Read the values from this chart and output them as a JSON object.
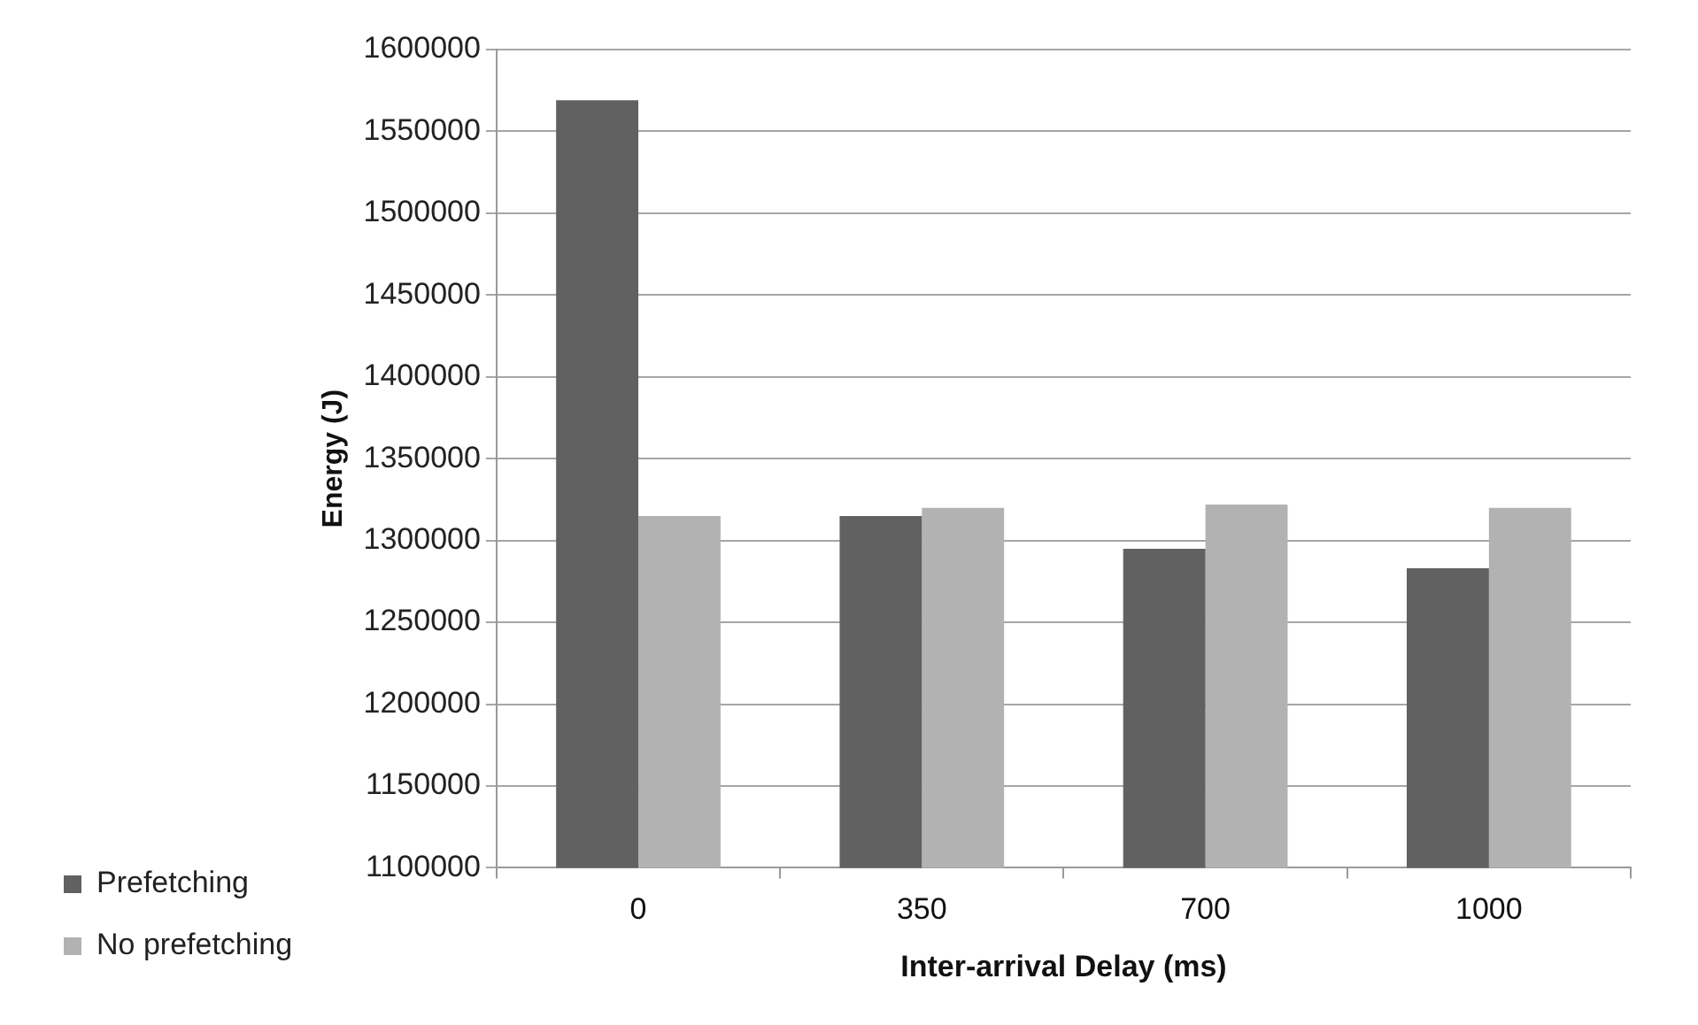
{
  "chart_data": {
    "type": "bar",
    "xlabel": "Inter-arrival Delay (ms)",
    "ylabel": "Energy (J)",
    "categories": [
      "0",
      "350",
      "700",
      "1000"
    ],
    "series": [
      {
        "name": "Prefetching",
        "color": "#616161",
        "values": [
          1569000,
          1315000,
          1295000,
          1283000
        ]
      },
      {
        "name": "No prefetching",
        "color": "#b2b2b2",
        "values": [
          1315000,
          1320000,
          1322000,
          1320000
        ]
      }
    ],
    "ylim": [
      1100000,
      1600000
    ],
    "yticks": [
      1100000,
      1150000,
      1200000,
      1250000,
      1300000,
      1350000,
      1400000,
      1450000,
      1500000,
      1550000,
      1600000
    ],
    "grid": "y",
    "legend": "bottom left"
  }
}
